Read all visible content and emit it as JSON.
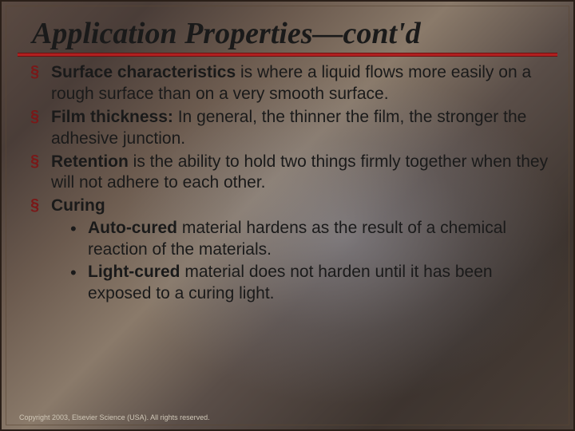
{
  "title": "Application Properties—cont'd",
  "bullets": [
    {
      "bold": "Surface characteristics",
      "rest": " is where a liquid flows more easily on a rough surface than on a very smooth surface."
    },
    {
      "bold": "Film thickness:",
      "rest": " In general, the thinner the film, the stronger the adhesive junction."
    },
    {
      "bold": "Retention",
      "rest": " is the ability to hold two things firmly together when they will not adhere to each other."
    },
    {
      "bold": "Curing",
      "rest": "",
      "subs": [
        {
          "bold": "Auto-cured",
          "rest": " material hardens as the result of a chemical reaction of the materials."
        },
        {
          "bold": "Light-cured",
          "rest": " material does not harden until it has been exposed to a curing light."
        }
      ]
    }
  ],
  "copyright": "Copyright 2003, Elsevier Science (USA). All rights reserved.",
  "colors": {
    "underline": "#b02020",
    "bullet_marker": "#7a1818",
    "text": "#1a1a1a",
    "copyright": "#d0c8b8"
  },
  "fonts": {
    "title_family": "Times New Roman",
    "title_size_pt": 38,
    "body_family": "Verdana",
    "body_size_pt": 21,
    "copyright_size_pt": 9
  }
}
